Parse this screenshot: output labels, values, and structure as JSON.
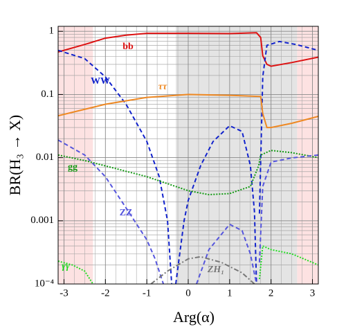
{
  "chart_data": {
    "type": "line",
    "xlabel": "Arg(α)",
    "ylabel": "BR(H₃ → X)",
    "xlim": [
      -3.1416,
      3.1416
    ],
    "ylim": [
      0.0001,
      1.2
    ],
    "yscale": "log",
    "grid": true,
    "xticks": [
      -3,
      -2,
      -1,
      0,
      1,
      2,
      3
    ],
    "minor_xticks": [
      -2.75,
      -2.5,
      -2.25,
      -1.75,
      -1.5,
      -1.25,
      -0.75,
      -0.5,
      -0.25,
      0.25,
      0.5,
      0.75,
      1.25,
      1.5,
      1.75,
      2.25,
      2.5,
      2.75
    ],
    "yticks": [
      1,
      0.1,
      0.01,
      0.001,
      {
        "value": 0.0001,
        "label": "10⁻⁴"
      }
    ],
    "minor_yticks": [
      0.0002,
      0.0003,
      0.0004,
      0.0005,
      0.0006,
      0.0007,
      0.0008,
      0.0009,
      0.002,
      0.003,
      0.004,
      0.005,
      0.006,
      0.007,
      0.008,
      0.009,
      0.02,
      0.03,
      0.04,
      0.05,
      0.06,
      0.07,
      0.08,
      0.09,
      0.2,
      0.3,
      0.4,
      0.5,
      0.6,
      0.7,
      0.8,
      0.9
    ],
    "regions": [
      {
        "x": [
          -3.1416,
          -2.3
        ],
        "color": "#fde2e2"
      },
      {
        "x": [
          -0.3,
          2.63
        ],
        "color": "#e4e4e4"
      },
      {
        "x": [
          2.63,
          3.1416
        ],
        "color": "#fde2e2"
      }
    ],
    "series": [
      {
        "name": "bb",
        "color": "#dd1111",
        "dash": "solid",
        "x": [
          -3.1416,
          -2.5,
          -2,
          -1.5,
          -1,
          0,
          1,
          1.65,
          1.75,
          1.8,
          1.9,
          2,
          2.5,
          3.1416
        ],
        "values": [
          0.47,
          0.62,
          0.78,
          0.87,
          0.93,
          0.93,
          0.92,
          0.95,
          0.8,
          0.41,
          0.3,
          0.28,
          0.32,
          0.39
        ]
      },
      {
        "name": "WW",
        "color": "#1122cc",
        "dash": "6,4",
        "x": [
          -3.1416,
          -2.5,
          -2,
          -1.5,
          -1,
          -0.7,
          -0.5,
          -0.4,
          -0.35,
          -0.3,
          -0.1,
          0,
          0.3,
          0.6,
          1,
          1.3,
          1.5,
          1.6,
          1.65,
          1.68,
          1.72,
          1.8,
          1.9,
          2.2,
          2.6,
          3.1416
        ],
        "values": [
          0.5,
          0.37,
          0.19,
          0.07,
          0.018,
          0.005,
          0.001,
          0.0001,
          null,
          0.0001,
          0.001,
          0.0021,
          0.0075,
          0.018,
          0.032,
          0.026,
          0.0075,
          0.0014,
          0.0001,
          null,
          0.0013,
          0.19,
          0.6,
          0.69,
          0.62,
          0.5
        ]
      },
      {
        "name": "ττ",
        "color": "#ee8822",
        "dash": "solid",
        "x": [
          -3.1416,
          -2,
          -1,
          0,
          1,
          1.75,
          1.8,
          1.9,
          2,
          2.5,
          3.1416
        ],
        "values": [
          0.046,
          0.07,
          0.09,
          0.1,
          0.097,
          0.093,
          0.05,
          0.03,
          0.03,
          0.035,
          0.045
        ]
      },
      {
        "name": "gg",
        "color": "#119911",
        "dash": "2,2",
        "x": [
          -3.1416,
          -2.5,
          -2,
          -1,
          0,
          0.5,
          1,
          1.5,
          1.7,
          1.75,
          2,
          2.5,
          3.1416
        ],
        "values": [
          0.011,
          0.009,
          0.0074,
          0.005,
          0.003,
          0.0026,
          0.0027,
          0.0035,
          0.0074,
          0.011,
          0.013,
          0.012,
          0.01
        ]
      },
      {
        "name": "ZZ",
        "color": "#5555dd",
        "dash": "6,4",
        "x": [
          -3.1416,
          -2.5,
          -2,
          -1.5,
          -1,
          -0.8,
          -0.6,
          -0.4,
          0.2,
          0.5,
          1,
          1.3,
          1.5,
          1.65,
          1.68,
          1.72,
          1.8,
          2,
          2.5,
          3.1416
        ],
        "values": [
          0.019,
          0.011,
          0.005,
          0.0016,
          0.0005,
          0.00025,
          0.0001,
          null,
          0.0001,
          0.00035,
          0.00088,
          0.0007,
          0.0003,
          0.0001,
          null,
          0.00022,
          0.0035,
          0.0085,
          0.0099,
          0.011
        ]
      },
      {
        "name": "ZH₁",
        "color": "#777777",
        "dash": "7,3,2,3",
        "x": [
          -0.9,
          -0.5,
          0,
          0.3,
          0.8,
          1.3,
          1.6
        ],
        "values": [
          0.0001,
          0.00016,
          0.00025,
          0.00027,
          0.00022,
          0.00015,
          0.0001
        ]
      },
      {
        "name": "γγ",
        "color": "#22dd22",
        "dash": "2,2",
        "x": [
          -3.1416,
          -2.8,
          -2.5,
          -2.3,
          -2.2,
          1.72,
          1.8,
          2,
          2.5,
          3.1416
        ],
        "values": [
          0.00023,
          0.0002,
          0.00016,
          0.0001,
          null,
          0.00012,
          0.0004,
          0.00035,
          0.0003,
          0.0002
        ]
      }
    ]
  }
}
